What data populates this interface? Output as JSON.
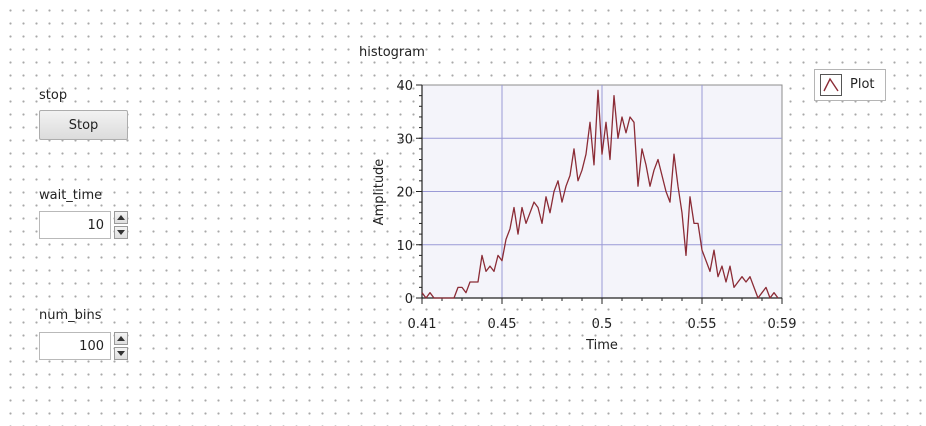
{
  "controls": {
    "stop": {
      "label": "stop",
      "button_label": "Stop"
    },
    "wait_time": {
      "label": "wait_time",
      "value": "10"
    },
    "num_bins": {
      "label": "num_bins",
      "value": "100"
    }
  },
  "graph": {
    "title": "histogram",
    "legend_label": "Plot",
    "plot_color": "#8b2c36",
    "plot_bg": "#f4f4fa",
    "grid_color": "#9a9ad6"
  },
  "chart_data": {
    "type": "line",
    "title": "histogram",
    "xlabel": "Time",
    "ylabel": "Amplitude",
    "xlim": [
      0.41,
      0.59
    ],
    "ylim": [
      0,
      40
    ],
    "x_ticks": [
      "0.41",
      "0.45",
      "0.5",
      "0.55",
      "0.59"
    ],
    "y_ticks": [
      "0",
      "10",
      "20",
      "30",
      "40"
    ],
    "grid": true,
    "legend_position": "top-right",
    "series": [
      {
        "name": "Plot",
        "x": [
          0.41,
          0.412,
          0.414,
          0.416,
          0.418,
          0.42,
          0.422,
          0.424,
          0.426,
          0.428,
          0.43,
          0.432,
          0.434,
          0.436,
          0.438,
          0.44,
          0.442,
          0.444,
          0.446,
          0.448,
          0.45,
          0.452,
          0.454,
          0.456,
          0.458,
          0.46,
          0.462,
          0.464,
          0.466,
          0.468,
          0.47,
          0.472,
          0.474,
          0.476,
          0.478,
          0.48,
          0.482,
          0.484,
          0.486,
          0.488,
          0.49,
          0.492,
          0.494,
          0.496,
          0.498,
          0.5,
          0.502,
          0.504,
          0.506,
          0.508,
          0.51,
          0.512,
          0.514,
          0.516,
          0.518,
          0.52,
          0.522,
          0.524,
          0.526,
          0.528,
          0.53,
          0.532,
          0.534,
          0.536,
          0.538,
          0.54,
          0.542,
          0.544,
          0.546,
          0.548,
          0.55,
          0.552,
          0.554,
          0.556,
          0.558,
          0.56,
          0.562,
          0.564,
          0.566,
          0.568,
          0.57,
          0.572,
          0.574,
          0.576,
          0.578,
          0.58,
          0.582,
          0.584,
          0.586,
          0.588
        ],
        "y": [
          1,
          0,
          1,
          0,
          0,
          0,
          0,
          0,
          0,
          2,
          2,
          1,
          3,
          3,
          3,
          8,
          5,
          6,
          5,
          8,
          7,
          11,
          13,
          17,
          12,
          17,
          14,
          16,
          18,
          17,
          14,
          19,
          16,
          20,
          22,
          18,
          21,
          23,
          28,
          22,
          24,
          27,
          33,
          25,
          39,
          27,
          33,
          26,
          38,
          30,
          34,
          31,
          34,
          33,
          21,
          28,
          25,
          21,
          24,
          26,
          23,
          20,
          18,
          27,
          21,
          16,
          8,
          19,
          14,
          14,
          9,
          7,
          5,
          9,
          4,
          6,
          3,
          6,
          2,
          3,
          4,
          3,
          4,
          2,
          0,
          1,
          2,
          0,
          1,
          0
        ]
      }
    ]
  }
}
